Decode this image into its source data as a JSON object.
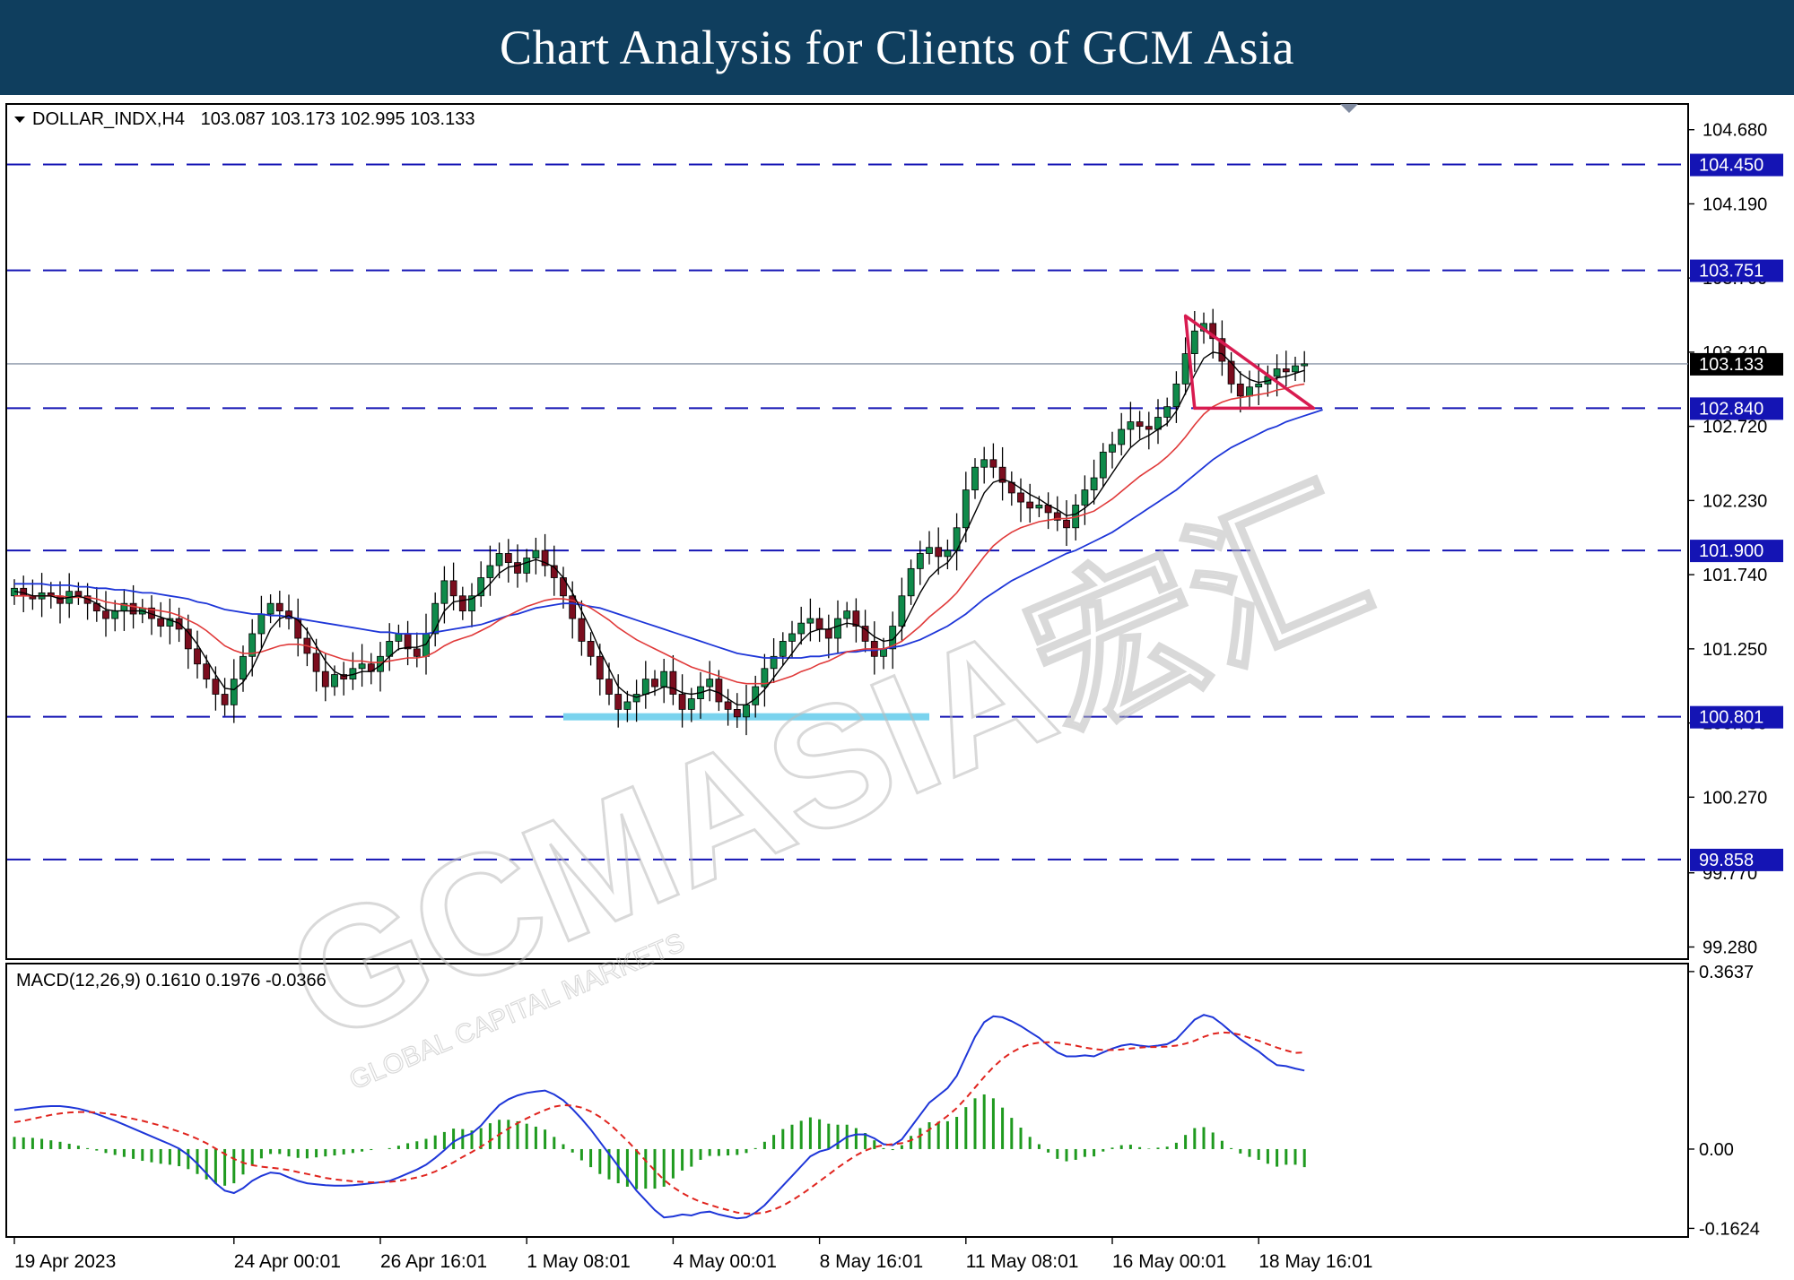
{
  "banner": {
    "title": "Chart Analysis for Clients of GCM Asia"
  },
  "watermark": {
    "brand": "GCMASIA宏汇",
    "tagline": "GLOBAL CAPITAL MARKETS"
  },
  "colors": {
    "level_line": "#1414b4",
    "bull_candle": "#0f8a4a",
    "bear_candle": "#7b0d1e",
    "ma_fast": "#000000",
    "ma_mid": "#e03a3a",
    "ma_slow": "#1e36d8",
    "triangle": "#d81b50",
    "support_zone": "#7ad3ee",
    "macd_line": "#1e36d8",
    "signal_line": "#e0241e",
    "histogram": "#1f9a1f"
  },
  "chart_data": [
    {
      "type": "candlestick",
      "symbol_label": "DOLLAR_INDX,H4",
      "ohlc_label": "103.087 103.173 102.995 103.133",
      "ylim": [
        99.2,
        104.85
      ],
      "ytick_labels": [
        "104.680",
        "104.190",
        "103.700",
        "103.210",
        "102.720",
        "102.230",
        "101.740",
        "101.250",
        "100.760",
        "100.270",
        "99.770",
        "99.280"
      ],
      "yticks": [
        104.68,
        104.19,
        103.7,
        103.21,
        102.72,
        102.23,
        101.74,
        101.25,
        100.76,
        100.27,
        99.77,
        99.28
      ],
      "xtick_labels": [
        "19 Apr 2023",
        "24 Apr 00:01",
        "26 Apr 16:01",
        "1 May 08:01",
        "4 May 00:01",
        "8 May 16:01",
        "11 May 08:01",
        "16 May 00:01",
        "18 May 16:01"
      ],
      "xtick_index": [
        0,
        24,
        40,
        56,
        72,
        88,
        104,
        120,
        136
      ],
      "last_price": 103.133,
      "levels": [
        104.45,
        103.751,
        102.84,
        101.9,
        100.801,
        99.858
      ],
      "level_labels": [
        "104.450",
        "103.751",
        "102.840",
        "101.900",
        "100.801",
        "99.858"
      ],
      "current_price_label": "103.133",
      "triangle": {
        "x": [
          128,
          129,
          142
        ],
        "y": [
          103.45,
          102.84,
          102.84
        ]
      },
      "support_zone": {
        "x": [
          60,
          100
        ],
        "y": 100.801
      },
      "close": [
        101.65,
        101.6,
        101.58,
        101.62,
        101.6,
        101.55,
        101.63,
        101.6,
        101.55,
        101.5,
        101.45,
        101.5,
        101.55,
        101.48,
        101.52,
        101.45,
        101.4,
        101.45,
        101.38,
        101.25,
        101.15,
        101.05,
        100.95,
        100.88,
        101.05,
        101.2,
        101.35,
        101.48,
        101.55,
        101.5,
        101.45,
        101.32,
        101.22,
        101.1,
        101.0,
        101.08,
        101.05,
        101.12,
        101.15,
        101.1,
        101.2,
        101.3,
        101.35,
        101.25,
        101.2,
        101.35,
        101.55,
        101.7,
        101.6,
        101.5,
        101.6,
        101.72,
        101.8,
        101.88,
        101.82,
        101.75,
        101.85,
        101.9,
        101.8,
        101.72,
        101.6,
        101.45,
        101.3,
        101.2,
        101.05,
        100.95,
        100.85,
        100.9,
        100.95,
        101.05,
        101.0,
        101.1,
        100.95,
        100.85,
        100.92,
        101.0,
        101.05,
        100.9,
        100.85,
        100.8,
        100.88,
        101.0,
        101.12,
        101.2,
        101.3,
        101.35,
        101.42,
        101.45,
        101.38,
        101.32,
        101.45,
        101.5,
        101.4,
        101.3,
        101.2,
        101.25,
        101.4,
        101.6,
        101.78,
        101.88,
        101.92,
        101.86,
        101.9,
        102.05,
        102.3,
        102.45,
        102.5,
        102.45,
        102.35,
        102.28,
        102.22,
        102.18,
        102.2,
        102.15,
        102.1,
        102.05,
        102.2,
        102.3,
        102.38,
        102.55,
        102.6,
        102.7,
        102.75,
        102.72,
        102.7,
        102.78,
        102.85,
        103.0,
        103.2,
        103.35,
        103.4,
        103.3,
        103.15,
        103.0,
        102.92,
        102.98,
        103.0,
        103.05,
        103.1,
        103.08,
        103.12,
        103.133
      ],
      "ma_fast": [
        101.63,
        101.62,
        101.6,
        101.6,
        101.6,
        101.58,
        101.59,
        101.6,
        101.58,
        101.55,
        101.51,
        101.5,
        101.5,
        101.5,
        101.5,
        101.48,
        101.46,
        101.44,
        101.42,
        101.36,
        101.28,
        101.18,
        101.08,
        100.99,
        100.98,
        101.03,
        101.12,
        101.25,
        101.38,
        101.45,
        101.47,
        101.44,
        101.37,
        101.27,
        101.17,
        101.1,
        101.07,
        101.08,
        101.1,
        101.1,
        101.14,
        101.2,
        101.25,
        101.26,
        101.26,
        101.28,
        101.38,
        101.5,
        101.56,
        101.57,
        101.58,
        101.62,
        101.68,
        101.75,
        101.79,
        101.8,
        101.82,
        101.84,
        101.82,
        101.79,
        101.72,
        101.62,
        101.5,
        101.38,
        101.24,
        101.12,
        101.0,
        100.95,
        100.93,
        100.95,
        100.97,
        101.0,
        100.99,
        100.96,
        100.95,
        100.96,
        100.98,
        100.96,
        100.92,
        100.88,
        100.88,
        100.92,
        100.98,
        101.06,
        101.14,
        101.22,
        101.3,
        101.36,
        101.38,
        101.38,
        101.4,
        101.42,
        101.41,
        101.38,
        101.33,
        101.3,
        101.31,
        101.38,
        101.5,
        101.62,
        101.72,
        101.78,
        101.82,
        101.9,
        102.02,
        102.15,
        102.28,
        102.35,
        102.37,
        102.35,
        102.31,
        102.27,
        102.24,
        102.2,
        102.17,
        102.13,
        102.14,
        102.18,
        102.23,
        102.32,
        102.41,
        102.5,
        102.58,
        102.63,
        102.66,
        102.7,
        102.74,
        102.82,
        102.94,
        103.06,
        103.17,
        103.21,
        103.2,
        103.14,
        103.07,
        103.03,
        103.01,
        103.02,
        103.04,
        103.05,
        103.07,
        103.09
      ],
      "ma_mid": [
        101.6,
        101.6,
        101.6,
        101.6,
        101.6,
        101.6,
        101.59,
        101.59,
        101.59,
        101.58,
        101.56,
        101.55,
        101.54,
        101.53,
        101.52,
        101.51,
        101.5,
        101.49,
        101.47,
        101.44,
        101.41,
        101.37,
        101.32,
        101.27,
        101.24,
        101.22,
        101.22,
        101.23,
        101.25,
        101.27,
        101.28,
        101.28,
        101.27,
        101.25,
        101.22,
        101.2,
        101.18,
        101.17,
        101.17,
        101.16,
        101.16,
        101.17,
        101.18,
        101.19,
        101.19,
        101.2,
        101.23,
        101.27,
        101.3,
        101.32,
        101.34,
        101.37,
        101.4,
        101.44,
        101.47,
        101.5,
        101.53,
        101.55,
        101.57,
        101.58,
        101.58,
        101.57,
        101.55,
        101.52,
        101.48,
        101.44,
        101.39,
        101.35,
        101.31,
        101.28,
        101.25,
        101.22,
        101.19,
        101.16,
        101.13,
        101.11,
        101.09,
        101.07,
        101.05,
        101.03,
        101.02,
        101.02,
        101.02,
        101.03,
        101.05,
        101.07,
        101.1,
        101.12,
        101.15,
        101.17,
        101.2,
        101.23,
        101.24,
        101.25,
        101.25,
        101.25,
        101.27,
        101.3,
        101.35,
        101.4,
        101.46,
        101.51,
        101.56,
        101.62,
        101.7,
        101.78,
        101.86,
        101.93,
        101.98,
        102.02,
        102.05,
        102.07,
        102.09,
        102.1,
        102.11,
        102.11,
        102.12,
        102.14,
        102.16,
        102.2,
        102.24,
        102.29,
        102.34,
        102.39,
        102.43,
        102.47,
        102.52,
        102.58,
        102.65,
        102.73,
        102.8,
        102.85,
        102.88,
        102.9,
        102.91,
        102.92,
        102.93,
        102.94,
        102.96,
        102.97,
        102.99,
        103.0
      ],
      "ma_slow": [
        101.68,
        101.68,
        101.68,
        101.68,
        101.67,
        101.67,
        101.67,
        101.66,
        101.66,
        101.65,
        101.65,
        101.64,
        101.64,
        101.63,
        101.62,
        101.62,
        101.61,
        101.6,
        101.59,
        101.58,
        101.56,
        101.55,
        101.53,
        101.51,
        101.5,
        101.49,
        101.48,
        101.48,
        101.47,
        101.47,
        101.46,
        101.45,
        101.44,
        101.43,
        101.42,
        101.41,
        101.4,
        101.39,
        101.38,
        101.37,
        101.36,
        101.36,
        101.35,
        101.35,
        101.35,
        101.35,
        101.36,
        101.37,
        101.38,
        101.39,
        101.4,
        101.41,
        101.43,
        101.45,
        101.47,
        101.48,
        101.5,
        101.52,
        101.53,
        101.54,
        101.55,
        101.55,
        101.54,
        101.53,
        101.52,
        101.5,
        101.48,
        101.46,
        101.44,
        101.42,
        101.4,
        101.38,
        101.36,
        101.34,
        101.32,
        101.3,
        101.28,
        101.26,
        101.24,
        101.22,
        101.21,
        101.2,
        101.19,
        101.19,
        101.19,
        101.19,
        101.19,
        101.2,
        101.2,
        101.21,
        101.22,
        101.23,
        101.23,
        101.24,
        101.24,
        101.25,
        101.26,
        101.27,
        101.29,
        101.31,
        101.34,
        101.37,
        101.4,
        101.44,
        101.48,
        101.53,
        101.58,
        101.62,
        101.66,
        101.7,
        101.73,
        101.76,
        101.79,
        101.82,
        101.85,
        101.88,
        101.9,
        101.93,
        101.96,
        101.99,
        102.02,
        102.06,
        102.1,
        102.14,
        102.18,
        102.22,
        102.26,
        102.3,
        102.35,
        102.4,
        102.45,
        102.5,
        102.54,
        102.58,
        102.61,
        102.64,
        102.67,
        102.7,
        102.72,
        102.75,
        102.77,
        102.79,
        102.81,
        102.83
      ]
    },
    {
      "type": "macd",
      "label": "MACD(12,26,9) 0.1610 0.1976 -0.0366",
      "ylim": [
        -0.18,
        0.38
      ],
      "ytick_labels": [
        "0.3637",
        "0.00",
        "-0.1624"
      ],
      "yticks": [
        0.3637,
        0.0,
        -0.1624
      ],
      "macd": [
        0.08,
        0.082,
        0.085,
        0.087,
        0.088,
        0.088,
        0.086,
        0.083,
        0.078,
        0.072,
        0.065,
        0.058,
        0.05,
        0.042,
        0.034,
        0.026,
        0.018,
        0.01,
        0.001,
        -0.012,
        -0.03,
        -0.05,
        -0.07,
        -0.085,
        -0.09,
        -0.08,
        -0.065,
        -0.055,
        -0.048,
        -0.05,
        -0.058,
        -0.065,
        -0.07,
        -0.072,
        -0.074,
        -0.075,
        -0.075,
        -0.074,
        -0.072,
        -0.07,
        -0.068,
        -0.065,
        -0.058,
        -0.05,
        -0.042,
        -0.032,
        -0.018,
        -0.002,
        0.015,
        0.025,
        0.032,
        0.048,
        0.07,
        0.09,
        0.102,
        0.11,
        0.115,
        0.118,
        0.12,
        0.112,
        0.1,
        0.082,
        0.062,
        0.04,
        0.015,
        -0.01,
        -0.035,
        -0.06,
        -0.085,
        -0.105,
        -0.125,
        -0.14,
        -0.138,
        -0.134,
        -0.136,
        -0.13,
        -0.128,
        -0.134,
        -0.138,
        -0.142,
        -0.14,
        -0.13,
        -0.115,
        -0.095,
        -0.075,
        -0.055,
        -0.035,
        -0.015,
        -0.005,
        0.0,
        0.012,
        0.025,
        0.03,
        0.03,
        0.022,
        0.01,
        0.008,
        0.02,
        0.045,
        0.07,
        0.095,
        0.11,
        0.125,
        0.15,
        0.19,
        0.23,
        0.26,
        0.272,
        0.27,
        0.262,
        0.252,
        0.24,
        0.228,
        0.212,
        0.198,
        0.19,
        0.19,
        0.192,
        0.19,
        0.198,
        0.206,
        0.212,
        0.215,
        0.212,
        0.21,
        0.212,
        0.215,
        0.225,
        0.245,
        0.265,
        0.275,
        0.27,
        0.256,
        0.24,
        0.225,
        0.212,
        0.2,
        0.185,
        0.172,
        0.17,
        0.165,
        0.161
      ],
      "signal": [
        0.055,
        0.058,
        0.062,
        0.066,
        0.07,
        0.073,
        0.075,
        0.076,
        0.076,
        0.075,
        0.073,
        0.07,
        0.066,
        0.062,
        0.058,
        0.053,
        0.048,
        0.042,
        0.036,
        0.029,
        0.021,
        0.012,
        0.001,
        -0.01,
        -0.02,
        -0.028,
        -0.033,
        -0.036,
        -0.038,
        -0.04,
        -0.043,
        -0.047,
        -0.051,
        -0.055,
        -0.059,
        -0.062,
        -0.064,
        -0.066,
        -0.067,
        -0.068,
        -0.068,
        -0.067,
        -0.065,
        -0.062,
        -0.058,
        -0.053,
        -0.046,
        -0.037,
        -0.027,
        -0.016,
        -0.006,
        0.005,
        0.017,
        0.03,
        0.042,
        0.053,
        0.063,
        0.072,
        0.08,
        0.087,
        0.09,
        0.089,
        0.085,
        0.077,
        0.066,
        0.052,
        0.035,
        0.017,
        -0.003,
        -0.024,
        -0.044,
        -0.063,
        -0.078,
        -0.09,
        -0.1,
        -0.108,
        -0.114,
        -0.12,
        -0.125,
        -0.13,
        -0.132,
        -0.132,
        -0.13,
        -0.124,
        -0.116,
        -0.105,
        -0.093,
        -0.08,
        -0.066,
        -0.052,
        -0.038,
        -0.025,
        -0.013,
        -0.003,
        0.004,
        0.008,
        0.01,
        0.012,
        0.018,
        0.027,
        0.04,
        0.054,
        0.068,
        0.084,
        0.104,
        0.126,
        0.148,
        0.168,
        0.185,
        0.198,
        0.208,
        0.215,
        0.218,
        0.219,
        0.218,
        0.215,
        0.212,
        0.208,
        0.205,
        0.203,
        0.203,
        0.204,
        0.206,
        0.208,
        0.209,
        0.209,
        0.21,
        0.212,
        0.216,
        0.222,
        0.23,
        0.236,
        0.239,
        0.238,
        0.234,
        0.228,
        0.222,
        0.215,
        0.208,
        0.202,
        0.197,
        0.198
      ]
    }
  ]
}
